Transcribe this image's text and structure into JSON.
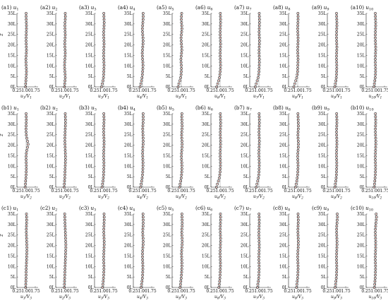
{
  "chart_data": {
    "type": "scatter",
    "layout_rows": 3,
    "layout_cols": 10,
    "y_axis_label": "z",
    "x_ticks": [
      "0.25",
      "1.00",
      "1.75"
    ],
    "y_ticks": [
      "0L",
      "5L",
      "10L",
      "15L",
      "20L",
      "25L",
      "30L",
      "35L"
    ],
    "xlim": [
      0.25,
      1.75
    ],
    "ylim": [
      0,
      35
    ],
    "grid": false,
    "legend": "none",
    "colors": {
      "marker_stroke": "#2a2a2a",
      "marker_fill": "#d63a2a",
      "reference_line": "#9a9a9a",
      "axis": "#222222"
    },
    "panels": [
      {
        "label": "(a1)",
        "var": "u",
        "sub": "1",
        "xlabel": "u1/V1",
        "y": [
          0.95,
          0.96,
          0.98,
          1.0,
          1.02,
          1.03,
          1.02,
          1.0,
          0.99,
          0.98,
          1.0,
          1.02,
          1.03,
          1.02,
          1.01,
          1.0,
          1.0,
          1.01,
          1.02,
          1.03,
          1.03,
          1.02,
          1.01,
          1.0,
          1.0
        ]
      },
      {
        "label": "(a2)",
        "var": "u",
        "sub": "2",
        "xlabel": "u2/V1",
        "y": [
          0.96,
          0.98,
          1.01,
          1.03,
          1.02,
          1.0,
          0.98,
          0.97,
          0.98,
          1.0,
          1.02,
          1.03,
          1.02,
          1.0,
          0.99,
          1.0,
          1.02,
          1.03,
          1.02,
          1.01,
          1.0,
          1.01,
          1.03,
          1.04,
          1.03
        ]
      },
      {
        "label": "(a3)",
        "var": "u",
        "sub": "3",
        "xlabel": "u3/V1",
        "y": [
          0.82,
          0.88,
          0.94,
          0.98,
          1.0,
          1.01,
          1.02,
          1.03,
          1.02,
          1.01,
          1.0,
          1.0,
          1.01,
          1.02,
          1.03,
          1.02,
          1.01,
          1.0,
          1.0,
          1.02,
          1.03,
          1.04,
          1.03,
          1.02,
          1.01
        ]
      },
      {
        "label": "(a4)",
        "var": "u",
        "sub": "4",
        "xlabel": "u4/V1",
        "y": [
          0.8,
          0.86,
          0.92,
          0.96,
          0.99,
          1.01,
          1.03,
          1.04,
          1.03,
          1.01,
          0.99,
          0.98,
          1.0,
          1.02,
          1.04,
          1.05,
          1.04,
          1.02,
          1.0,
          0.99,
          1.01,
          1.03,
          1.05,
          1.06,
          1.05
        ]
      },
      {
        "label": "(a5)",
        "var": "u",
        "sub": "5",
        "xlabel": "u5/V1",
        "y": [
          0.74,
          0.8,
          0.88,
          0.94,
          0.98,
          1.0,
          1.01,
          1.0,
          0.98,
          0.97,
          0.99,
          1.02,
          1.04,
          1.03,
          1.01,
          0.99,
          0.98,
          1.0,
          1.03,
          1.05,
          1.04,
          1.02,
          1.0,
          1.01,
          1.03
        ]
      },
      {
        "label": "(a6)",
        "var": "u",
        "sub": "6",
        "xlabel": "u6/V1",
        "y": [
          0.72,
          0.8,
          0.88,
          0.94,
          0.98,
          1.01,
          1.03,
          1.04,
          1.03,
          1.02,
          1.01,
          1.01,
          1.02,
          1.03,
          1.04,
          1.03,
          1.02,
          1.01,
          1.01,
          1.02,
          1.03,
          1.04,
          1.04,
          1.03,
          1.02
        ]
      },
      {
        "label": "(a7)",
        "var": "u",
        "sub": "7",
        "xlabel": "u7/V1",
        "y": [
          0.7,
          0.78,
          0.86,
          0.93,
          0.98,
          1.01,
          1.02,
          1.03,
          1.04,
          1.04,
          1.03,
          1.02,
          1.02,
          1.03,
          1.04,
          1.05,
          1.04,
          1.03,
          1.02,
          1.03,
          1.04,
          1.05,
          1.05,
          1.04,
          1.03
        ]
      },
      {
        "label": "(a8)",
        "var": "u",
        "sub": "8",
        "xlabel": "u8/V1",
        "y": [
          0.68,
          0.76,
          0.84,
          0.91,
          0.96,
          0.99,
          1.0,
          1.01,
          1.02,
          1.03,
          1.02,
          1.01,
          1.0,
          1.01,
          1.02,
          1.03,
          1.03,
          1.02,
          1.01,
          1.0,
          1.01,
          1.02,
          1.03,
          1.03,
          1.02
        ]
      },
      {
        "label": "(a9)",
        "var": "u",
        "sub": "9",
        "xlabel": "u9/V1",
        "y": [
          0.85,
          0.9,
          0.95,
          0.98,
          1.0,
          1.01,
          1.02,
          1.02,
          1.01,
          1.0,
          1.0,
          1.01,
          1.02,
          1.03,
          1.02,
          1.01,
          1.0,
          1.0,
          1.01,
          1.02,
          1.03,
          1.03,
          1.02,
          1.01,
          1.0
        ]
      },
      {
        "label": "(a10)",
        "var": "u",
        "sub": "10",
        "xlabel": "u10/V1",
        "y": [
          0.88,
          0.92,
          0.96,
          0.99,
          1.01,
          1.02,
          1.02,
          1.01,
          1.0,
          1.0,
          1.01,
          1.02,
          1.03,
          1.03,
          1.02,
          1.01,
          1.0,
          1.0,
          1.01,
          1.02,
          1.03,
          1.03,
          1.02,
          1.01,
          1.0
        ]
      },
      {
        "label": "(b1)",
        "var": "u",
        "sub": "1",
        "xlabel": "u1/V2",
        "y": [
          0.92,
          0.94,
          0.96,
          0.98,
          1.0,
          1.01,
          1.02,
          1.02,
          1.01,
          1.0,
          1.0,
          1.02,
          1.06,
          1.12,
          1.16,
          1.12,
          1.06,
          1.02,
          1.0,
          0.99,
          1.0,
          1.01,
          1.02,
          1.01,
          1.0
        ]
      },
      {
        "label": "(b2)",
        "var": "u",
        "sub": "2",
        "xlabel": "u2/V2",
        "y": [
          0.93,
          0.95,
          0.97,
          0.99,
          1.0,
          1.01,
          1.02,
          1.03,
          1.04,
          1.05,
          1.05,
          1.04,
          1.03,
          1.02,
          1.01,
          1.0,
          1.0,
          1.01,
          1.02,
          1.03,
          1.04,
          1.05,
          1.05,
          1.04,
          1.03
        ]
      },
      {
        "label": "(b3)",
        "var": "u",
        "sub": "3",
        "xlabel": "u3/V2",
        "y": [
          0.86,
          0.9,
          0.94,
          0.97,
          0.99,
          1.0,
          1.01,
          1.02,
          1.02,
          1.01,
          1.0,
          1.0,
          1.01,
          1.02,
          1.03,
          1.03,
          1.02,
          1.01,
          1.0,
          1.0,
          1.01,
          1.02,
          1.03,
          1.02,
          1.01
        ]
      },
      {
        "label": "(b4)",
        "var": "u",
        "sub": "4",
        "xlabel": "u4/V2",
        "y": [
          0.84,
          0.88,
          0.93,
          0.97,
          1.0,
          1.02,
          1.03,
          1.04,
          1.04,
          1.03,
          1.02,
          1.01,
          1.02,
          1.03,
          1.05,
          1.06,
          1.05,
          1.04,
          1.03,
          1.02,
          1.03,
          1.05,
          1.06,
          1.06,
          1.05
        ]
      },
      {
        "label": "(b5)",
        "var": "u",
        "sub": "5",
        "xlabel": "u5/V2",
        "y": [
          0.85,
          0.9,
          0.95,
          0.99,
          1.02,
          1.04,
          1.05,
          1.05,
          1.04,
          1.02,
          1.01,
          1.02,
          1.04,
          1.06,
          1.07,
          1.06,
          1.04,
          1.03,
          1.04,
          1.06,
          1.07,
          1.06,
          1.05,
          1.04,
          1.05
        ]
      },
      {
        "label": "(b6)",
        "var": "u",
        "sub": "6",
        "xlabel": "u6/V2",
        "y": [
          0.7,
          0.78,
          0.86,
          0.93,
          0.97,
          1.0,
          1.02,
          1.03,
          1.03,
          1.02,
          1.01,
          1.01,
          1.02,
          1.03,
          1.04,
          1.04,
          1.03,
          1.02,
          1.02,
          1.03,
          1.04,
          1.05,
          1.04,
          1.03,
          1.02
        ]
      },
      {
        "label": "(b7)",
        "var": "u",
        "sub": "7",
        "xlabel": "u7/V2",
        "y": [
          0.78,
          0.84,
          0.9,
          0.95,
          0.99,
          1.01,
          1.02,
          1.03,
          1.03,
          1.02,
          1.01,
          1.0,
          1.01,
          1.02,
          1.03,
          1.04,
          1.03,
          1.02,
          1.01,
          1.02,
          1.03,
          1.04,
          1.04,
          1.03,
          1.02
        ]
      },
      {
        "label": "(b8)",
        "var": "u",
        "sub": "8",
        "xlabel": "u8/V2",
        "y": [
          0.82,
          0.87,
          0.92,
          0.96,
          0.99,
          1.01,
          1.02,
          1.03,
          1.02,
          1.01,
          1.0,
          1.01,
          1.03,
          1.05,
          1.06,
          1.05,
          1.03,
          1.02,
          1.03,
          1.05,
          1.06,
          1.05,
          1.04,
          1.03,
          1.02
        ]
      },
      {
        "label": "(b9)",
        "var": "u",
        "sub": "9",
        "xlabel": "u9/V2",
        "y": [
          0.86,
          0.9,
          0.94,
          0.97,
          0.99,
          1.0,
          1.01,
          1.02,
          1.02,
          1.01,
          1.0,
          1.0,
          1.01,
          1.02,
          1.03,
          1.03,
          1.02,
          1.01,
          1.0,
          1.01,
          1.02,
          1.03,
          1.03,
          1.02,
          1.01
        ]
      },
      {
        "label": "(b10)",
        "var": "u",
        "sub": "10",
        "xlabel": "u10/V2",
        "y": [
          0.9,
          0.93,
          0.96,
          0.98,
          1.0,
          1.01,
          1.02,
          1.02,
          1.01,
          1.0,
          1.0,
          1.01,
          1.02,
          1.03,
          1.04,
          1.04,
          1.03,
          1.02,
          1.01,
          1.01,
          1.02,
          1.03,
          1.03,
          1.02,
          1.01
        ]
      },
      {
        "label": "(c1)",
        "var": "u",
        "sub": "1",
        "xlabel": "u1/V3",
        "y": [
          0.96,
          0.97,
          0.98,
          0.99,
          1.0,
          1.0,
          1.01,
          1.02,
          1.03,
          1.04,
          1.05,
          1.06,
          1.07,
          1.07,
          1.06,
          1.05,
          1.04,
          1.03,
          1.02,
          1.02,
          1.03,
          1.04,
          1.05,
          1.04,
          1.03
        ]
      },
      {
        "label": "(c2)",
        "var": "u",
        "sub": "2",
        "xlabel": "u2/V3",
        "y": [
          0.95,
          0.96,
          0.97,
          0.98,
          0.99,
          1.0,
          1.01,
          1.02,
          1.03,
          1.04,
          1.05,
          1.06,
          1.07,
          1.08,
          1.08,
          1.07,
          1.06,
          1.05,
          1.04,
          1.03,
          1.02,
          1.01,
          1.0,
          0.99,
          0.98
        ]
      },
      {
        "label": "(c3)",
        "var": "u",
        "sub": "3",
        "xlabel": "u3/V3",
        "y": [
          0.9,
          0.93,
          0.96,
          0.98,
          1.0,
          1.01,
          1.02,
          1.02,
          1.01,
          1.0,
          1.0,
          1.01,
          1.02,
          1.03,
          1.04,
          1.04,
          1.03,
          1.02,
          1.01,
          1.01,
          1.02,
          1.03,
          1.04,
          1.04,
          1.03
        ]
      },
      {
        "label": "(c4)",
        "var": "u",
        "sub": "4",
        "xlabel": "u4/V3",
        "y": [
          0.88,
          0.92,
          0.96,
          0.99,
          1.01,
          1.02,
          1.03,
          1.03,
          1.02,
          1.01,
          1.0,
          1.0,
          1.01,
          1.03,
          1.05,
          1.06,
          1.05,
          1.03,
          1.02,
          1.03,
          1.05,
          1.06,
          1.06,
          1.05,
          1.04
        ]
      },
      {
        "label": "(c5)",
        "var": "u",
        "sub": "5",
        "xlabel": "u5/V3",
        "y": [
          0.9,
          0.93,
          0.96,
          0.99,
          1.01,
          1.03,
          1.04,
          1.05,
          1.05,
          1.04,
          1.03,
          1.02,
          1.03,
          1.05,
          1.07,
          1.08,
          1.07,
          1.05,
          1.04,
          1.05,
          1.07,
          1.08,
          1.07,
          1.06,
          1.05
        ]
      },
      {
        "label": "(c6)",
        "var": "u",
        "sub": "6",
        "xlabel": "u6/V3",
        "y": [
          0.9,
          0.93,
          0.96,
          0.98,
          1.0,
          1.01,
          1.02,
          1.03,
          1.03,
          1.02,
          1.01,
          1.0,
          1.01,
          1.02,
          1.03,
          1.04,
          1.04,
          1.03,
          1.02,
          1.01,
          1.02,
          1.03,
          1.04,
          1.04,
          1.03
        ]
      },
      {
        "label": "(c7)",
        "var": "u",
        "sub": "7",
        "xlabel": "u7/V3",
        "y": [
          0.88,
          0.91,
          0.95,
          0.98,
          1.0,
          1.01,
          1.02,
          1.02,
          1.01,
          1.0,
          1.0,
          1.01,
          1.02,
          1.03,
          1.03,
          1.02,
          1.01,
          1.0,
          1.0,
          1.01,
          1.02,
          1.03,
          1.03,
          1.02,
          1.01
        ]
      },
      {
        "label": "(c8)",
        "var": "u",
        "sub": "8",
        "xlabel": "u8/V3",
        "y": [
          0.9,
          0.93,
          0.96,
          0.99,
          1.01,
          1.02,
          1.03,
          1.03,
          1.02,
          1.01,
          1.0,
          1.01,
          1.02,
          1.04,
          1.05,
          1.05,
          1.04,
          1.03,
          1.02,
          1.02,
          1.03,
          1.04,
          1.05,
          1.04,
          1.03
        ]
      },
      {
        "label": "(c9)",
        "var": "u",
        "sub": "9",
        "xlabel": "u9/V3",
        "y": [
          0.88,
          0.92,
          0.95,
          0.98,
          1.0,
          1.01,
          1.02,
          1.02,
          1.01,
          1.0,
          1.0,
          1.01,
          1.02,
          1.03,
          1.04,
          1.04,
          1.03,
          1.02,
          1.01,
          1.01,
          1.02,
          1.04,
          1.06,
          1.08,
          1.06
        ]
      },
      {
        "label": "(c10)",
        "var": "u",
        "sub": "10",
        "xlabel": "u10/V3",
        "y": [
          0.92,
          0.95,
          0.97,
          0.99,
          1.0,
          1.01,
          1.02,
          1.02,
          1.01,
          1.0,
          1.0,
          1.01,
          1.02,
          1.03,
          1.03,
          1.03,
          1.02,
          1.01,
          1.0,
          1.01,
          1.03,
          1.05,
          1.08,
          1.1,
          1.07
        ]
      }
    ]
  }
}
